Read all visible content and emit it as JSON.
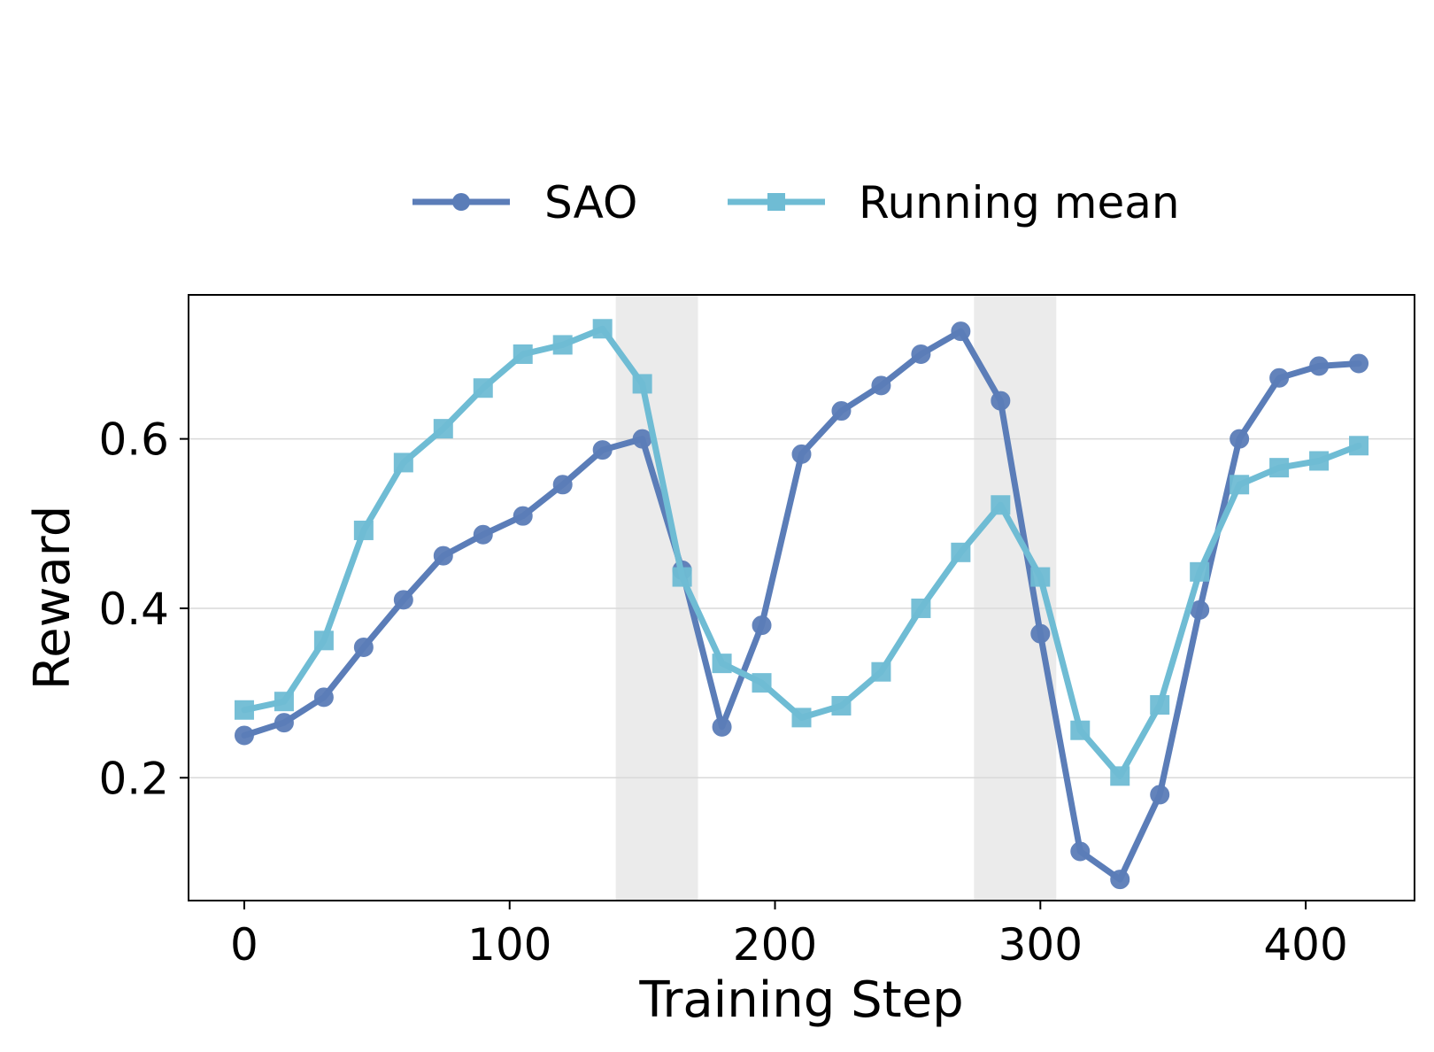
{
  "chart_data": {
    "type": "line",
    "xlabel": "Training Step",
    "ylabel": "Reward",
    "xlim": [
      -21,
      441
    ],
    "ylim": [
      0.055,
      0.77
    ],
    "xticks": [
      0,
      100,
      200,
      300,
      400
    ],
    "xtick_labels": [
      "0",
      "100",
      "200",
      "300",
      "400"
    ],
    "yticks": [
      0.2,
      0.4,
      0.6
    ],
    "ytick_labels": [
      "0.2",
      "0.4",
      "0.6"
    ],
    "grid": "horizontal",
    "legend_position": "top-center",
    "shaded_regions": [
      [
        140,
        171
      ],
      [
        275,
        306
      ]
    ],
    "x": [
      0,
      15,
      30,
      45,
      60,
      75,
      90,
      105,
      120,
      135,
      150,
      165,
      180,
      195,
      210,
      225,
      240,
      255,
      270,
      285,
      300,
      315,
      330,
      345,
      360,
      375,
      390,
      405,
      420
    ],
    "series": [
      {
        "name": "SAO",
        "color": "#5b7db8",
        "marker": "circle",
        "values": [
          0.25,
          0.265,
          0.295,
          0.354,
          0.41,
          0.462,
          0.487,
          0.509,
          0.546,
          0.587,
          0.6,
          0.445,
          0.26,
          0.38,
          0.582,
          0.633,
          0.663,
          0.7,
          0.727,
          0.645,
          0.37,
          0.113,
          0.08,
          0.18,
          0.398,
          0.6,
          0.672,
          0.686,
          0.689
        ]
      },
      {
        "name": "Running mean",
        "color": "#6fbcd4",
        "marker": "square",
        "values": [
          0.28,
          0.29,
          0.362,
          0.492,
          0.572,
          0.612,
          0.66,
          0.7,
          0.711,
          0.73,
          0.665,
          0.437,
          0.335,
          0.312,
          0.271,
          0.285,
          0.325,
          0.4,
          0.466,
          0.522,
          0.437,
          0.256,
          0.202,
          0.286,
          0.443,
          0.546,
          0.566,
          0.574,
          0.592
        ]
      }
    ]
  }
}
